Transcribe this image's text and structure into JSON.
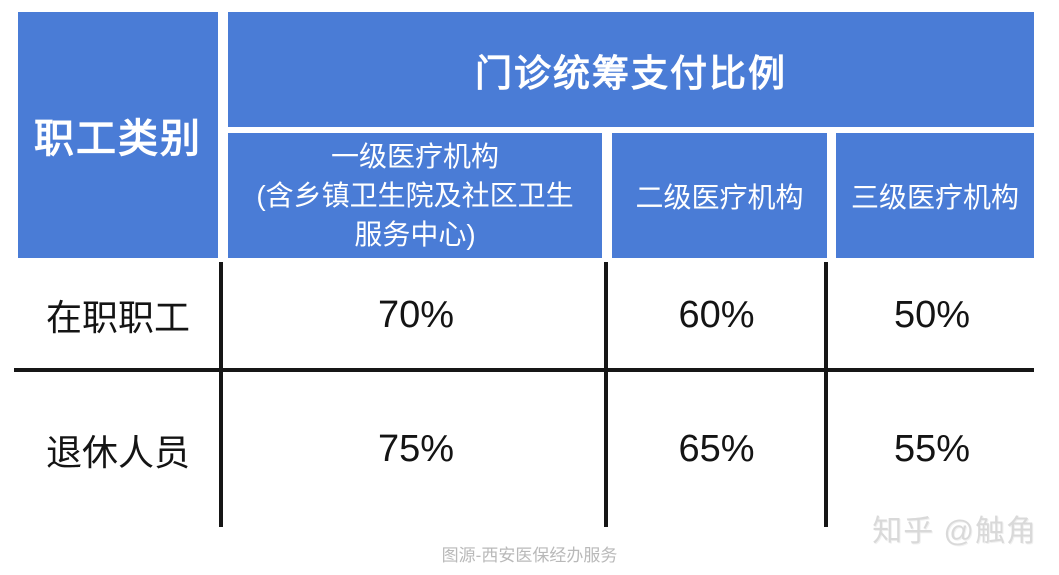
{
  "colors": {
    "header_blue": "#4a7cd6",
    "header_text": "#ffffff",
    "body_text": "#141414",
    "grid_line": "#161616",
    "caption_gray": "#b9b9b9",
    "watermark_gray": "#d9d9d9"
  },
  "table": {
    "corner_header": "职工类别",
    "group_header": "门诊统筹支付比例",
    "sub_headers": {
      "level1": {
        "line1": "一级医疗机构",
        "line2": "(含乡镇卫生院及社区卫生",
        "line3": "服务中心)"
      },
      "level2": "二级医疗机构",
      "level3": "三级医疗机构"
    },
    "rows": [
      {
        "label": "在职职工",
        "level1": "70%",
        "level2": "60%",
        "level3": "50%"
      },
      {
        "label": "退休人员",
        "level1": "75%",
        "level2": "65%",
        "level3": "55%"
      }
    ]
  },
  "caption": "图源-西安医保经办服务",
  "watermark": "知乎 @触角",
  "chart_data": {
    "type": "table",
    "title": "门诊统筹支付比例",
    "row_header": "职工类别",
    "columns": [
      "一级医疗机构(含乡镇卫生院及社区卫生服务中心)",
      "二级医疗机构",
      "三级医疗机构"
    ],
    "rows": [
      {
        "category": "在职职工",
        "values": [
          "70%",
          "60%",
          "50%"
        ]
      },
      {
        "category": "退休人员",
        "values": [
          "75%",
          "65%",
          "55%"
        ]
      }
    ]
  }
}
